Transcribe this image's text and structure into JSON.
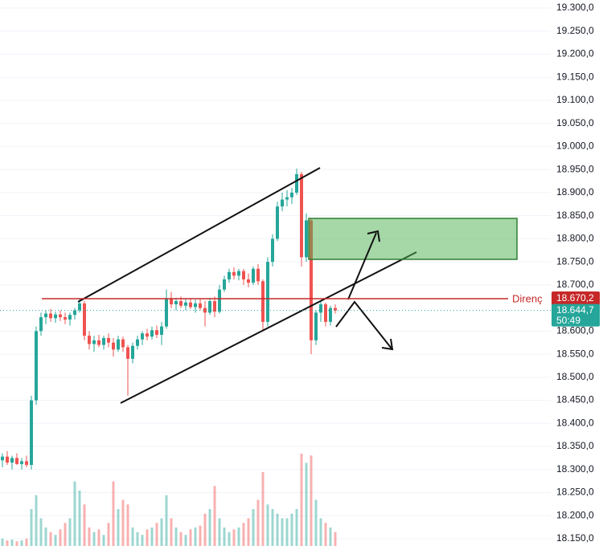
{
  "chart_data": {
    "type": "candlestick",
    "ylim": [
      18150,
      19300
    ],
    "yticks": [
      {
        "value": 18150,
        "label": "18.150,0"
      },
      {
        "value": 18200,
        "label": "18.200,0"
      },
      {
        "value": 18250,
        "label": "18.250,0"
      },
      {
        "value": 18300,
        "label": "18.300,0"
      },
      {
        "value": 18350,
        "label": "18.350,0"
      },
      {
        "value": 18400,
        "label": "18.400,0"
      },
      {
        "value": 18450,
        "label": "18.450,0"
      },
      {
        "value": 18500,
        "label": "18.500,0"
      },
      {
        "value": 18550,
        "label": "18.550,0"
      },
      {
        "value": 18600,
        "label": "18.600,0"
      },
      {
        "value": 18700,
        "label": "18.700,0"
      },
      {
        "value": 18750,
        "label": "18.750,0"
      },
      {
        "value": 18800,
        "label": "18.800,0"
      },
      {
        "value": 18850,
        "label": "18.850,0"
      },
      {
        "value": 18900,
        "label": "18.900,0"
      },
      {
        "value": 18950,
        "label": "18.950,0"
      },
      {
        "value": 19000,
        "label": "19.000,0"
      },
      {
        "value": 19050,
        "label": "19.050,0"
      },
      {
        "value": 19100,
        "label": "19.100,0"
      },
      {
        "value": 19150,
        "label": "19.150,0"
      },
      {
        "value": 19200,
        "label": "19.200,0"
      },
      {
        "value": 19250,
        "label": "19.250,0"
      },
      {
        "value": 19300,
        "label": "19.300,0"
      }
    ],
    "grid": true,
    "up_color": "#26a69a",
    "down_color": "#ef5350",
    "open": [
      18320,
      18328,
      18315,
      18325,
      18312,
      18318,
      18310,
      18450,
      18600,
      18630,
      18638,
      18628,
      18636,
      18630,
      18625,
      18635,
      18645,
      18660,
      18590,
      18572,
      18580,
      18570,
      18585,
      18575,
      18560,
      18582,
      18565,
      18540,
      18568,
      18582,
      18595,
      18588,
      18602,
      18592,
      18610,
      18670,
      18658,
      18665,
      18655,
      18662,
      18652,
      18660,
      18650,
      18640,
      18665,
      18642,
      18690,
      18712,
      18728,
      18720,
      18730,
      18712,
      18705,
      18735,
      18708,
      18620,
      18750,
      18800,
      18870,
      18885,
      18890,
      18900,
      18940,
      18760,
      18840,
      18580,
      18640,
      18658,
      18620,
      18650
    ],
    "high": [
      18335,
      18340,
      18330,
      18335,
      18325,
      18330,
      18460,
      18610,
      18640,
      18645,
      18648,
      18642,
      18645,
      18640,
      18640,
      18650,
      18672,
      18665,
      18600,
      18590,
      18592,
      18590,
      18595,
      18585,
      18590,
      18588,
      18570,
      18575,
      18590,
      18600,
      18605,
      18610,
      18612,
      18620,
      18690,
      18685,
      18672,
      18675,
      18670,
      18672,
      18668,
      18670,
      18665,
      18672,
      18675,
      18700,
      18720,
      18735,
      18738,
      18735,
      18735,
      18725,
      18740,
      18745,
      18712,
      18760,
      18810,
      18880,
      18900,
      18905,
      18910,
      18952,
      18945,
      18855,
      18845,
      18645,
      18665,
      18662,
      18655,
      18658
    ],
    "low": [
      18305,
      18310,
      18300,
      18310,
      18300,
      18305,
      18300,
      18440,
      18590,
      18615,
      18620,
      18618,
      18622,
      18615,
      18612,
      18625,
      18640,
      18580,
      18560,
      18555,
      18565,
      18560,
      18565,
      18545,
      18555,
      18555,
      18460,
      18530,
      18560,
      18570,
      18580,
      18582,
      18585,
      18570,
      18605,
      18650,
      18645,
      18650,
      18645,
      18648,
      18640,
      18645,
      18610,
      18635,
      18630,
      18638,
      18685,
      18705,
      18712,
      18710,
      18700,
      18695,
      18700,
      18700,
      18600,
      18610,
      18740,
      18795,
      18860,
      18870,
      18875,
      18895,
      18740,
      18750,
      18550,
      18570,
      18620,
      18610,
      18612,
      18638
    ],
    "close": [
      18328,
      18315,
      18325,
      18312,
      18318,
      18310,
      18450,
      18600,
      18630,
      18638,
      18628,
      18636,
      18630,
      18625,
      18635,
      18645,
      18660,
      18590,
      18572,
      18580,
      18570,
      18585,
      18575,
      18560,
      18582,
      18565,
      18540,
      18568,
      18582,
      18595,
      18588,
      18602,
      18592,
      18610,
      18670,
      18658,
      18665,
      18655,
      18662,
      18652,
      18660,
      18650,
      18640,
      18665,
      18642,
      18690,
      18712,
      18728,
      18720,
      18730,
      18712,
      18705,
      18735,
      18708,
      18620,
      18750,
      18800,
      18870,
      18885,
      18890,
      18900,
      18940,
      18760,
      18840,
      18580,
      18640,
      18658,
      18620,
      18650,
      18644.7
    ],
    "volume": [
      8,
      6,
      7,
      5,
      6,
      8,
      40,
      55,
      30,
      20,
      15,
      12,
      18,
      25,
      30,
      70,
      60,
      45,
      20,
      15,
      18,
      12,
      25,
      70,
      40,
      50,
      45,
      20,
      15,
      12,
      18,
      20,
      25,
      30,
      55,
      30,
      20,
      15,
      12,
      18,
      20,
      22,
      35,
      40,
      65,
      30,
      20,
      15,
      18,
      20,
      25,
      30,
      40,
      50,
      80,
      45,
      40,
      35,
      30,
      30,
      35,
      40,
      100,
      90,
      98,
      50,
      30,
      25,
      20,
      15
    ],
    "resistance": {
      "value": 18670.2,
      "label": "18.670,2",
      "name": "Direnç",
      "color": "#c62828"
    },
    "last_price": {
      "value": 18644.7,
      "label": "18.644,7",
      "countdown": "50:49",
      "color": "#26a69a"
    }
  }
}
